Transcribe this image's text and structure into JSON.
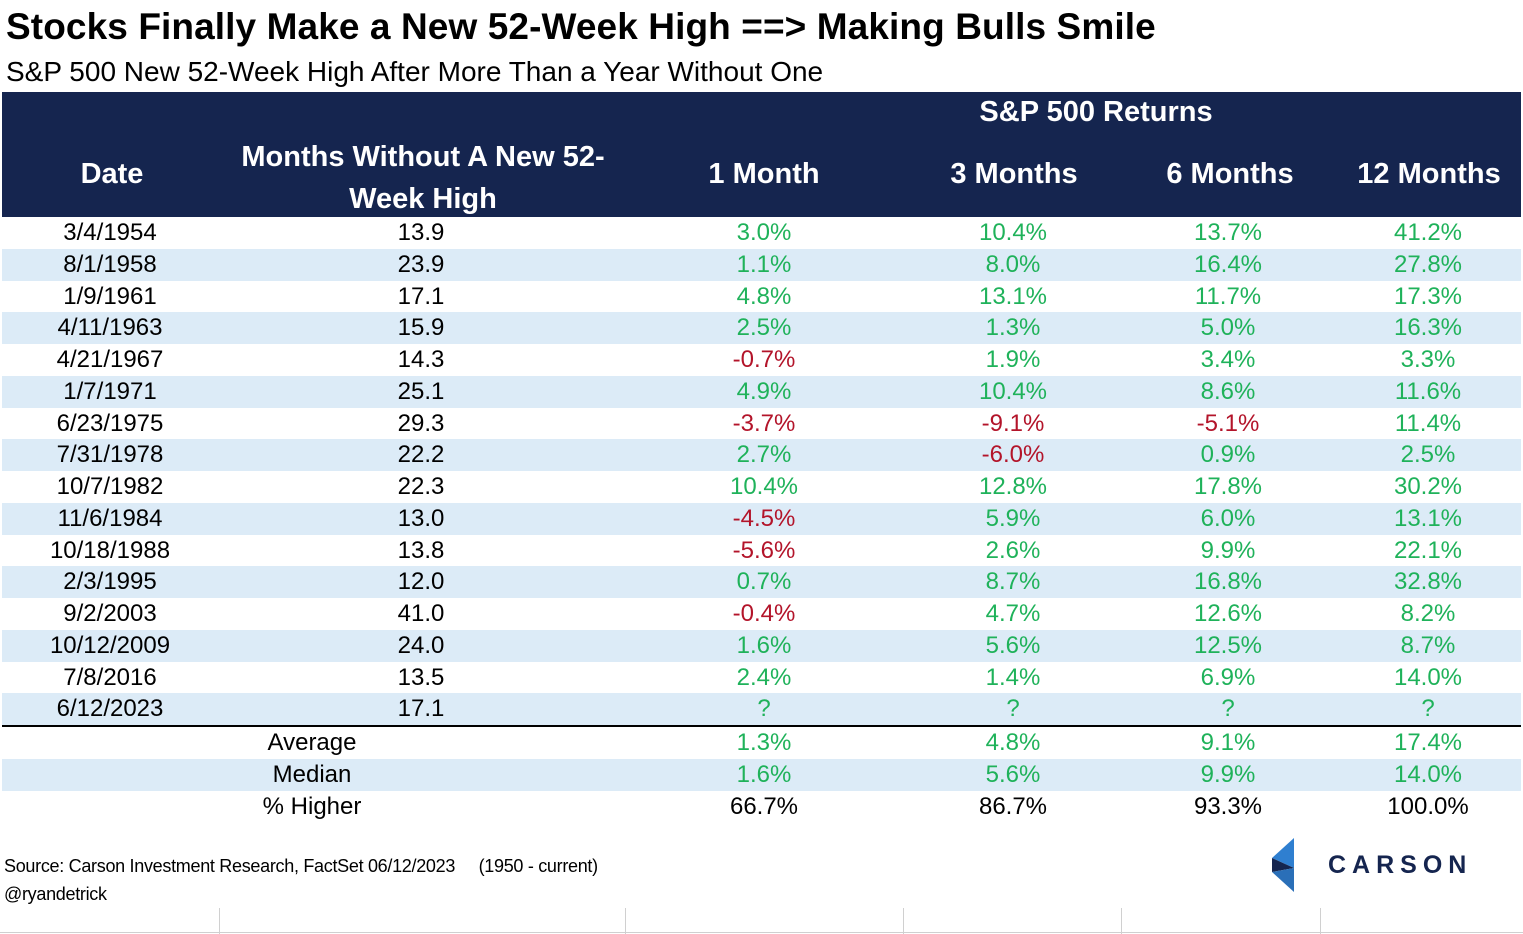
{
  "title": "Stocks Finally Make a New 52-Week High ==> Making Bulls Smile",
  "subtitle": "S&P 500 New 52-Week High After More Than a Year Without One",
  "header": {
    "group_label": "S&P 500 Returns",
    "date": "Date",
    "months_without": "Months Without A New 52-Week High",
    "col_1m": "1 Month",
    "col_3m": "3 Months",
    "col_6m": "6 Months",
    "col_12m": "12 Months"
  },
  "rows": [
    {
      "date": "3/4/1954",
      "months": "13.9",
      "r1": "3.0%",
      "r3": "10.4%",
      "r6": "13.7%",
      "r12": "41.2%"
    },
    {
      "date": "8/1/1958",
      "months": "23.9",
      "r1": "1.1%",
      "r3": "8.0%",
      "r6": "16.4%",
      "r12": "27.8%"
    },
    {
      "date": "1/9/1961",
      "months": "17.1",
      "r1": "4.8%",
      "r3": "13.1%",
      "r6": "11.7%",
      "r12": "17.3%"
    },
    {
      "date": "4/11/1963",
      "months": "15.9",
      "r1": "2.5%",
      "r3": "1.3%",
      "r6": "5.0%",
      "r12": "16.3%"
    },
    {
      "date": "4/21/1967",
      "months": "14.3",
      "r1": "-0.7%",
      "r3": "1.9%",
      "r6": "3.4%",
      "r12": "3.3%"
    },
    {
      "date": "1/7/1971",
      "months": "25.1",
      "r1": "4.9%",
      "r3": "10.4%",
      "r6": "8.6%",
      "r12": "11.6%"
    },
    {
      "date": "6/23/1975",
      "months": "29.3",
      "r1": "-3.7%",
      "r3": "-9.1%",
      "r6": "-5.1%",
      "r12": "11.4%"
    },
    {
      "date": "7/31/1978",
      "months": "22.2",
      "r1": "2.7%",
      "r3": "-6.0%",
      "r6": "0.9%",
      "r12": "2.5%"
    },
    {
      "date": "10/7/1982",
      "months": "22.3",
      "r1": "10.4%",
      "r3": "12.8%",
      "r6": "17.8%",
      "r12": "30.2%"
    },
    {
      "date": "11/6/1984",
      "months": "13.0",
      "r1": "-4.5%",
      "r3": "5.9%",
      "r6": "6.0%",
      "r12": "13.1%"
    },
    {
      "date": "10/18/1988",
      "months": "13.8",
      "r1": "-5.6%",
      "r3": "2.6%",
      "r6": "9.9%",
      "r12": "22.1%"
    },
    {
      "date": "2/3/1995",
      "months": "12.0",
      "r1": "0.7%",
      "r3": "8.7%",
      "r6": "16.8%",
      "r12": "32.8%"
    },
    {
      "date": "9/2/2003",
      "months": "41.0",
      "r1": "-0.4%",
      "r3": "4.7%",
      "r6": "12.6%",
      "r12": "8.2%"
    },
    {
      "date": "10/12/2009",
      "months": "24.0",
      "r1": "1.6%",
      "r3": "5.6%",
      "r6": "12.5%",
      "r12": "8.7%"
    },
    {
      "date": "7/8/2016",
      "months": "13.5",
      "r1": "2.4%",
      "r3": "1.4%",
      "r6": "6.9%",
      "r12": "14.0%"
    },
    {
      "date": "6/12/2023",
      "months": "17.1",
      "r1": "?",
      "r3": "?",
      "r6": "?",
      "r12": "?"
    }
  ],
  "stats": [
    {
      "label": "Average",
      "r1": "1.3%",
      "r3": "4.8%",
      "r6": "9.1%",
      "r12": "17.4%",
      "colored": true
    },
    {
      "label": "Median",
      "r1": "1.6%",
      "r3": "5.6%",
      "r6": "9.9%",
      "r12": "14.0%",
      "colored": true
    },
    {
      "label": "% Higher",
      "r1": "66.7%",
      "r3": "86.7%",
      "r6": "93.3%",
      "r12": "100.0%",
      "colored": false
    }
  ],
  "footer": {
    "source": "Source: Carson Investment Research, FactSet 06/12/2023",
    "range": "(1950 - current)",
    "handle": "@ryandetrick"
  },
  "logo": {
    "text": "CARSON",
    "icon": "carson-chevron-icon"
  },
  "colors": {
    "header_bg": "#15254f",
    "row_shade": "#dcebf7",
    "positive": "#1fb25a",
    "negative": "#b3142a"
  }
}
